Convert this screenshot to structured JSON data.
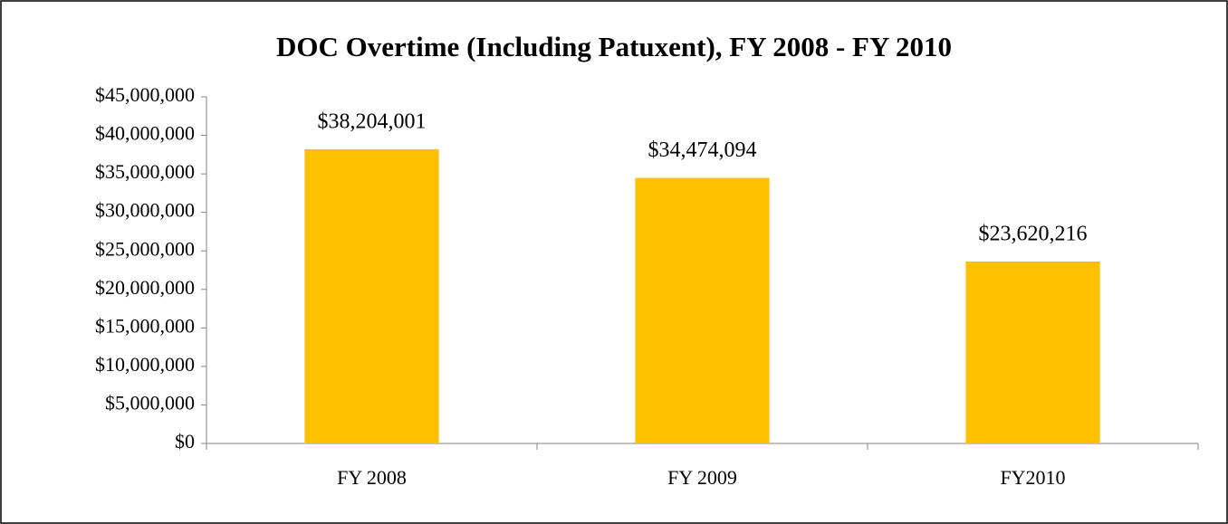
{
  "chart_data": {
    "type": "bar",
    "title": "DOC Overtime (Including Patuxent), FY 2008 - FY 2010",
    "categories": [
      "FY 2008",
      "FY 2009",
      "FY2010"
    ],
    "values": [
      38204001,
      34474094,
      23620216
    ],
    "value_labels": [
      "$38,204,001",
      "$34,474,094",
      "$23,620,216"
    ],
    "color": "#ffc000",
    "ylim": [
      0,
      45000000
    ],
    "yticks": [
      {
        "value": 0,
        "label": "$0"
      },
      {
        "value": 5000000,
        "label": "$5,000,000"
      },
      {
        "value": 10000000,
        "label": "$10,000,000"
      },
      {
        "value": 15000000,
        "label": "$15,000,000"
      },
      {
        "value": 20000000,
        "label": "$20,000,000"
      },
      {
        "value": 25000000,
        "label": "$25,000,000"
      },
      {
        "value": 30000000,
        "label": "$30,000,000"
      },
      {
        "value": 35000000,
        "label": "$35,000,000"
      },
      {
        "value": 40000000,
        "label": "$40,000,000"
      },
      {
        "value": 45000000,
        "label": "$45,000,000"
      }
    ],
    "grid": false
  }
}
